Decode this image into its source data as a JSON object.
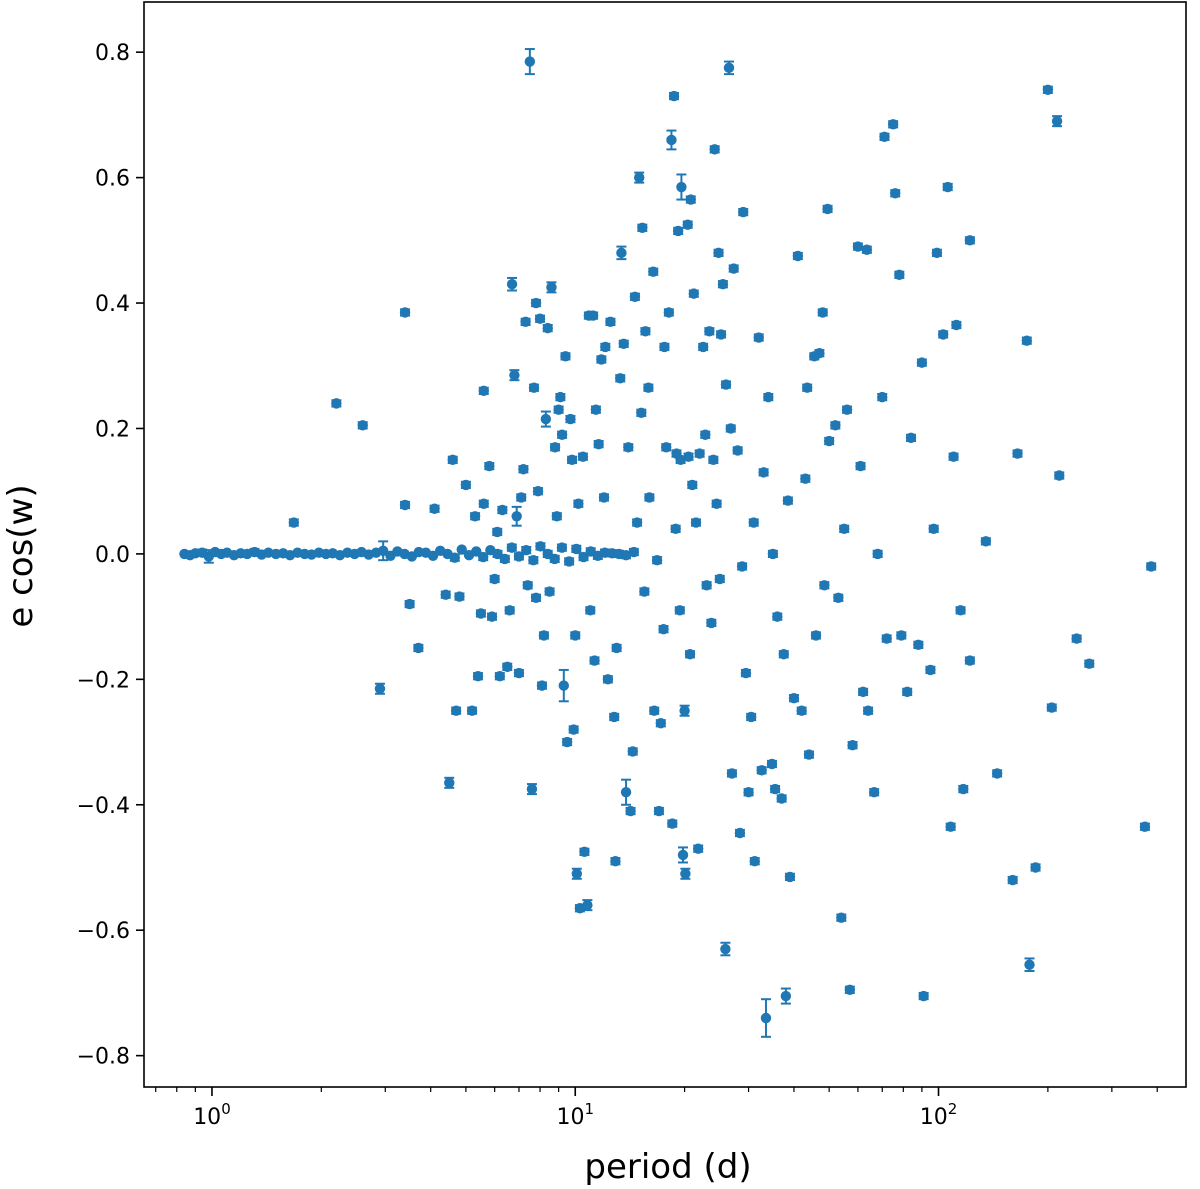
{
  "chart_data": {
    "type": "scatter",
    "title": "",
    "xlabel": "period (d)",
    "ylabel": "e cos(w)",
    "xscale": "log",
    "xlim": [
      0.65,
      480
    ],
    "ylim": [
      -0.85,
      0.88
    ],
    "grid": false,
    "legend": "none",
    "marker_color": "#1f77b4",
    "x_ticks": [
      {
        "value": 1,
        "base": "10",
        "exp": "0"
      },
      {
        "value": 10,
        "base": "10",
        "exp": "1"
      },
      {
        "value": 100,
        "base": "10",
        "exp": "2"
      }
    ],
    "y_ticks": [
      {
        "value": 0.8,
        "label": "0.8"
      },
      {
        "value": 0.6,
        "label": "0.6"
      },
      {
        "value": 0.4,
        "label": "0.4"
      },
      {
        "value": 0.2,
        "label": "0.2"
      },
      {
        "value": 0.0,
        "label": "0.0"
      },
      {
        "value": -0.2,
        "label": "−0.2"
      },
      {
        "value": -0.4,
        "label": "−0.4"
      },
      {
        "value": -0.6,
        "label": "−0.6"
      },
      {
        "value": -0.8,
        "label": "−0.8"
      }
    ],
    "points": [
      [
        0.84,
        0.0,
        0.004
      ],
      [
        0.87,
        -0.002,
        0.004
      ],
      [
        0.9,
        0.001,
        0.004
      ],
      [
        0.94,
        0.002,
        0.005
      ],
      [
        0.98,
        -0.004,
        0.01
      ],
      [
        1.02,
        0.003,
        0.004
      ],
      [
        1.06,
        0.0,
        0.004
      ],
      [
        1.1,
        0.002,
        0.004
      ],
      [
        1.15,
        -0.002,
        0.004
      ],
      [
        1.2,
        0.001,
        0.004
      ],
      [
        1.25,
        0.0,
        0.004
      ],
      [
        1.31,
        0.003,
        0.005
      ],
      [
        1.37,
        -0.001,
        0.004
      ],
      [
        1.43,
        0.002,
        0.004
      ],
      [
        1.5,
        0.0,
        0.004
      ],
      [
        1.57,
        0.001,
        0.004
      ],
      [
        1.64,
        -0.002,
        0.004
      ],
      [
        1.72,
        0.002,
        0.004
      ],
      [
        1.8,
        0.0,
        0.004
      ],
      [
        1.88,
        -0.001,
        0.004
      ],
      [
        1.97,
        0.002,
        0.004
      ],
      [
        2.06,
        0.0,
        0.004
      ],
      [
        2.15,
        0.001,
        0.004
      ],
      [
        2.25,
        -0.002,
        0.004
      ],
      [
        2.36,
        0.002,
        0.004
      ],
      [
        2.47,
        0.0,
        0.004
      ],
      [
        2.58,
        0.003,
        0.004
      ],
      [
        2.7,
        -0.001,
        0.004
      ],
      [
        2.83,
        0.002,
        0.004
      ],
      [
        2.96,
        0.005,
        0.015
      ],
      [
        3.1,
        -0.003,
        0.004
      ],
      [
        3.24,
        0.004,
        0.004
      ],
      [
        3.39,
        0.0,
        0.004
      ],
      [
        3.55,
        -0.004,
        0.004
      ],
      [
        3.71,
        0.003,
        0.004
      ],
      [
        3.88,
        0.002,
        0.004
      ],
      [
        4.06,
        -0.003,
        0.004
      ],
      [
        4.25,
        0.005,
        0.004
      ],
      [
        4.45,
        0.0,
        0.004
      ],
      [
        4.66,
        -0.006,
        0.005
      ],
      [
        4.87,
        0.007,
        0.004
      ],
      [
        5.1,
        -0.002,
        0.004
      ],
      [
        5.34,
        0.004,
        0.004
      ],
      [
        5.58,
        -0.005,
        0.005
      ],
      [
        5.84,
        0.006,
        0.004
      ],
      [
        6.11,
        0.0,
        0.005
      ],
      [
        6.4,
        -0.008,
        0.005
      ],
      [
        6.69,
        0.01,
        0.005
      ],
      [
        7.0,
        -0.004,
        0.005
      ],
      [
        7.33,
        0.006,
        0.005
      ],
      [
        7.67,
        -0.01,
        0.005
      ],
      [
        8.02,
        0.012,
        0.005
      ],
      [
        8.4,
        0.0,
        0.005
      ],
      [
        8.78,
        -0.008,
        0.005
      ],
      [
        9.19,
        0.01,
        0.005
      ],
      [
        9.62,
        -0.012,
        0.005
      ],
      [
        10.07,
        0.008,
        0.005
      ],
      [
        10.54,
        -0.005,
        0.005
      ],
      [
        11.03,
        0.004,
        0.005
      ],
      [
        11.54,
        -0.003,
        0.005
      ],
      [
        12.07,
        0.002,
        0.005
      ],
      [
        12.63,
        0.001,
        0.005
      ],
      [
        13.2,
        0.0,
        0.005
      ],
      [
        13.8,
        -0.002,
        0.005
      ],
      [
        14.5,
        0.003,
        0.005
      ],
      [
        1.68,
        0.05,
        0.005
      ],
      [
        2.2,
        0.24,
        0.005
      ],
      [
        2.6,
        0.205,
        0.005
      ],
      [
        3.4,
        0.385,
        0.005
      ],
      [
        2.9,
        -0.215,
        0.008
      ],
      [
        3.5,
        -0.08,
        0.005
      ],
      [
        3.7,
        -0.15,
        0.005
      ],
      [
        3.4,
        0.078,
        0.005
      ],
      [
        4.1,
        0.072,
        0.005
      ],
      [
        4.4,
        -0.065,
        0.005
      ],
      [
        4.5,
        -0.365,
        0.008
      ],
      [
        4.6,
        0.15,
        0.005
      ],
      [
        4.7,
        -0.25,
        0.005
      ],
      [
        4.8,
        -0.068,
        0.005
      ],
      [
        5.0,
        0.11,
        0.005
      ],
      [
        5.2,
        -0.25,
        0.005
      ],
      [
        5.3,
        0.06,
        0.005
      ],
      [
        5.4,
        -0.195,
        0.005
      ],
      [
        5.5,
        -0.095,
        0.005
      ],
      [
        5.6,
        0.26,
        0.005
      ],
      [
        5.6,
        0.08,
        0.005
      ],
      [
        5.8,
        0.14,
        0.005
      ],
      [
        6.2,
        -0.195,
        0.005
      ],
      [
        6.5,
        -0.18,
        0.005
      ],
      [
        6.7,
        0.43,
        0.01
      ],
      [
        6.8,
        0.285,
        0.008
      ],
      [
        6.9,
        0.06,
        0.015
      ],
      [
        7.0,
        -0.19,
        0.005
      ],
      [
        7.2,
        0.135,
        0.005
      ],
      [
        7.3,
        0.37,
        0.005
      ],
      [
        7.5,
        0.785,
        0.02
      ],
      [
        7.6,
        -0.375,
        0.008
      ],
      [
        7.7,
        0.265,
        0.005
      ],
      [
        7.8,
        0.4,
        0.005
      ],
      [
        8.0,
        0.375,
        0.005
      ],
      [
        8.1,
        -0.21,
        0.005
      ],
      [
        8.3,
        0.215,
        0.012
      ],
      [
        8.4,
        0.36,
        0.005
      ],
      [
        8.6,
        0.425,
        0.008
      ],
      [
        8.8,
        0.17,
        0.005
      ],
      [
        9.0,
        0.23,
        0.005
      ],
      [
        9.1,
        0.25,
        0.005
      ],
      [
        9.3,
        -0.21,
        0.025
      ],
      [
        9.4,
        0.315,
        0.005
      ],
      [
        9.5,
        -0.3,
        0.005
      ],
      [
        9.7,
        0.215,
        0.005
      ],
      [
        9.9,
        -0.28,
        0.005
      ],
      [
        10.1,
        -0.51,
        0.008
      ],
      [
        10.3,
        -0.565,
        0.005
      ],
      [
        10.5,
        0.155,
        0.005
      ],
      [
        10.6,
        -0.475,
        0.005
      ],
      [
        10.8,
        -0.56,
        0.008
      ],
      [
        10.9,
        0.38,
        0.005
      ],
      [
        11.2,
        0.38,
        0.005
      ],
      [
        11.4,
        0.23,
        0.005
      ],
      [
        11.6,
        0.175,
        0.005
      ],
      [
        11.8,
        0.31,
        0.005
      ],
      [
        12.1,
        0.33,
        0.005
      ],
      [
        12.5,
        0.37,
        0.005
      ],
      [
        12.9,
        -0.49,
        0.005
      ],
      [
        13.4,
        0.48,
        0.01
      ],
      [
        13.6,
        0.335,
        0.005
      ],
      [
        13.8,
        -0.38,
        0.02
      ],
      [
        14.2,
        -0.41,
        0.005
      ],
      [
        14.6,
        0.41,
        0.005
      ],
      [
        15.0,
        0.6,
        0.008
      ],
      [
        15.3,
        0.52,
        0.005
      ],
      [
        15.6,
        0.355,
        0.005
      ],
      [
        15.9,
        0.265,
        0.005
      ],
      [
        16.4,
        0.45,
        0.005
      ],
      [
        17.0,
        -0.41,
        0.005
      ],
      [
        17.6,
        0.33,
        0.005
      ],
      [
        18.1,
        0.385,
        0.005
      ],
      [
        18.4,
        0.66,
        0.015
      ],
      [
        18.7,
        0.73,
        0.005
      ],
      [
        19.2,
        0.515,
        0.005
      ],
      [
        19.6,
        0.585,
        0.02
      ],
      [
        19.8,
        -0.48,
        0.012
      ],
      [
        20.1,
        -0.51,
        0.008
      ],
      [
        20.4,
        0.525,
        0.005
      ],
      [
        20.8,
        0.565,
        0.005
      ],
      [
        21.2,
        0.415,
        0.005
      ],
      [
        21.8,
        -0.47,
        0.005
      ],
      [
        22.5,
        0.33,
        0.005
      ],
      [
        23.4,
        0.355,
        0.005
      ],
      [
        24.2,
        0.645,
        0.005
      ],
      [
        24.8,
        0.48,
        0.005
      ],
      [
        25.5,
        0.43,
        0.005
      ],
      [
        25.9,
        -0.63,
        0.01
      ],
      [
        26.5,
        0.775,
        0.01
      ],
      [
        27.3,
        0.455,
        0.005
      ],
      [
        28.4,
        -0.445,
        0.005
      ],
      [
        29.0,
        0.545,
        0.005
      ],
      [
        30.0,
        -0.38,
        0.005
      ],
      [
        31.2,
        -0.49,
        0.005
      ],
      [
        32.6,
        -0.345,
        0.005
      ],
      [
        33.5,
        -0.74,
        0.03
      ],
      [
        34.8,
        -0.335,
        0.005
      ],
      [
        35.5,
        -0.375,
        0.005
      ],
      [
        37.0,
        -0.39,
        0.005
      ],
      [
        38.0,
        -0.705,
        0.012
      ],
      [
        39.0,
        -0.515,
        0.005
      ],
      [
        41.0,
        0.475,
        0.005
      ],
      [
        43.5,
        0.265,
        0.005
      ],
      [
        45.5,
        0.315,
        0.005
      ],
      [
        48.0,
        0.385,
        0.005
      ],
      [
        49.5,
        0.55,
        0.005
      ],
      [
        52.0,
        0.205,
        0.005
      ],
      [
        54.0,
        -0.58,
        0.005
      ],
      [
        57.0,
        -0.695,
        0.005
      ],
      [
        60.0,
        0.49,
        0.005
      ],
      [
        63.5,
        0.485,
        0.005
      ],
      [
        66.5,
        -0.38,
        0.005
      ],
      [
        71.0,
        0.665,
        0.005
      ],
      [
        75.0,
        0.685,
        0.005
      ],
      [
        76.0,
        0.575,
        0.005
      ],
      [
        78.0,
        0.445,
        0.005
      ],
      [
        84.0,
        0.185,
        0.005
      ],
      [
        90.0,
        0.305,
        0.005
      ],
      [
        91.0,
        -0.705,
        0.005
      ],
      [
        99.0,
        0.48,
        0.005
      ],
      [
        103.0,
        0.35,
        0.005
      ],
      [
        106.0,
        0.585,
        0.005
      ],
      [
        108.0,
        -0.435,
        0.005
      ],
      [
        112.0,
        0.365,
        0.005
      ],
      [
        117.0,
        -0.375,
        0.005
      ],
      [
        122.0,
        0.5,
        0.005
      ],
      [
        122.0,
        -0.17,
        0.005
      ],
      [
        160.0,
        -0.52,
        0.005
      ],
      [
        165.0,
        0.16,
        0.005
      ],
      [
        175.0,
        0.34,
        0.005
      ],
      [
        178.0,
        -0.655,
        0.01
      ],
      [
        185.0,
        -0.5,
        0.005
      ],
      [
        200.0,
        0.74,
        0.005
      ],
      [
        205.0,
        -0.245,
        0.005
      ],
      [
        212.0,
        0.69,
        0.008
      ],
      [
        215.0,
        0.125,
        0.005
      ],
      [
        240.0,
        -0.135,
        0.005
      ],
      [
        260.0,
        -0.175,
        0.005
      ],
      [
        370.0,
        -0.435,
        0.005
      ],
      [
        385.0,
        -0.02,
        0.005
      ],
      [
        16.0,
        0.09,
        0.005
      ],
      [
        16.5,
        -0.25,
        0.005
      ],
      [
        17.2,
        -0.27,
        0.005
      ],
      [
        17.8,
        0.17,
        0.005
      ],
      [
        18.5,
        -0.43,
        0.005
      ],
      [
        19.0,
        0.16,
        0.005
      ],
      [
        19.5,
        0.15,
        0.005
      ],
      [
        20.0,
        -0.25,
        0.008
      ],
      [
        20.5,
        0.155,
        0.005
      ],
      [
        21.0,
        0.11,
        0.005
      ],
      [
        22.0,
        0.16,
        0.005
      ],
      [
        23.0,
        -0.05,
        0.005
      ],
      [
        24.0,
        0.15,
        0.005
      ],
      [
        25.2,
        0.35,
        0.005
      ],
      [
        26.0,
        0.27,
        0.005
      ],
      [
        27.0,
        -0.35,
        0.005
      ],
      [
        28.0,
        0.165,
        0.005
      ],
      [
        29.5,
        -0.19,
        0.005
      ],
      [
        31.0,
        0.05,
        0.005
      ],
      [
        32.0,
        0.345,
        0.005
      ],
      [
        33.0,
        0.13,
        0.005
      ],
      [
        34.0,
        0.25,
        0.005
      ],
      [
        36.0,
        -0.1,
        0.005
      ],
      [
        38.5,
        0.085,
        0.005
      ],
      [
        40.0,
        -0.23,
        0.005
      ],
      [
        42.0,
        -0.25,
        0.005
      ],
      [
        44.0,
        -0.32,
        0.005
      ],
      [
        46.0,
        -0.13,
        0.005
      ],
      [
        47.0,
        0.32,
        0.005
      ],
      [
        50.0,
        0.18,
        0.005
      ],
      [
        53.0,
        -0.07,
        0.005
      ],
      [
        55.0,
        0.04,
        0.005
      ],
      [
        58.0,
        -0.305,
        0.005
      ],
      [
        61.0,
        0.14,
        0.005
      ],
      [
        64.0,
        -0.25,
        0.005
      ],
      [
        68.0,
        0.0,
        0.005
      ],
      [
        72.0,
        -0.135,
        0.005
      ],
      [
        79.0,
        -0.13,
        0.005
      ],
      [
        88.0,
        -0.145,
        0.005
      ],
      [
        95.0,
        -0.185,
        0.005
      ],
      [
        110.0,
        0.155,
        0.005
      ],
      [
        8.5,
        -0.06,
        0.005
      ],
      [
        9.2,
        0.19,
        0.005
      ],
      [
        10.0,
        -0.13,
        0.005
      ],
      [
        10.2,
        0.08,
        0.005
      ],
      [
        11.0,
        -0.09,
        0.005
      ],
      [
        12.0,
        0.09,
        0.005
      ],
      [
        12.3,
        -0.2,
        0.005
      ],
      [
        13.0,
        -0.15,
        0.005
      ],
      [
        14.0,
        0.17,
        0.005
      ],
      [
        14.8,
        0.05,
        0.005
      ],
      [
        15.5,
        -0.06,
        0.005
      ],
      [
        6.0,
        -0.04,
        0.005
      ],
      [
        6.3,
        0.07,
        0.005
      ],
      [
        6.6,
        -0.09,
        0.005
      ],
      [
        7.1,
        0.09,
        0.005
      ],
      [
        7.4,
        -0.05,
        0.005
      ],
      [
        7.9,
        0.1,
        0.005
      ],
      [
        8.2,
        -0.13,
        0.005
      ],
      [
        8.9,
        0.06,
        0.005
      ],
      [
        9.8,
        0.15,
        0.005
      ],
      [
        5.9,
        -0.1,
        0.005
      ],
      [
        6.1,
        0.035,
        0.005
      ],
      [
        7.8,
        -0.07,
        0.005
      ],
      [
        11.3,
        -0.17,
        0.005
      ],
      [
        12.8,
        -0.26,
        0.005
      ],
      [
        13.3,
        0.28,
        0.005
      ],
      [
        14.4,
        -0.315,
        0.005
      ],
      [
        15.2,
        0.225,
        0.005
      ],
      [
        16.8,
        -0.01,
        0.005
      ],
      [
        17.5,
        -0.12,
        0.005
      ],
      [
        18.9,
        0.04,
        0.005
      ],
      [
        19.4,
        -0.09,
        0.005
      ],
      [
        20.7,
        -0.16,
        0.005
      ],
      [
        21.5,
        0.05,
        0.005
      ],
      [
        22.8,
        0.19,
        0.005
      ],
      [
        23.7,
        -0.11,
        0.005
      ],
      [
        24.5,
        0.08,
        0.005
      ],
      [
        25.0,
        -0.04,
        0.005
      ],
      [
        26.8,
        0.2,
        0.005
      ],
      [
        28.8,
        -0.02,
        0.005
      ],
      [
        30.5,
        -0.26,
        0.005
      ],
      [
        35.0,
        0.0,
        0.005
      ],
      [
        37.5,
        -0.16,
        0.005
      ],
      [
        43.0,
        0.12,
        0.005
      ],
      [
        48.5,
        -0.05,
        0.005
      ],
      [
        56.0,
        0.23,
        0.005
      ],
      [
        62.0,
        -0.22,
        0.005
      ],
      [
        70.0,
        0.25,
        0.005
      ],
      [
        82.0,
        -0.22,
        0.005
      ],
      [
        97.0,
        0.04,
        0.005
      ],
      [
        115.0,
        -0.09,
        0.005
      ],
      [
        135.0,
        0.02,
        0.005
      ],
      [
        145.0,
        -0.35,
        0.005
      ]
    ]
  }
}
